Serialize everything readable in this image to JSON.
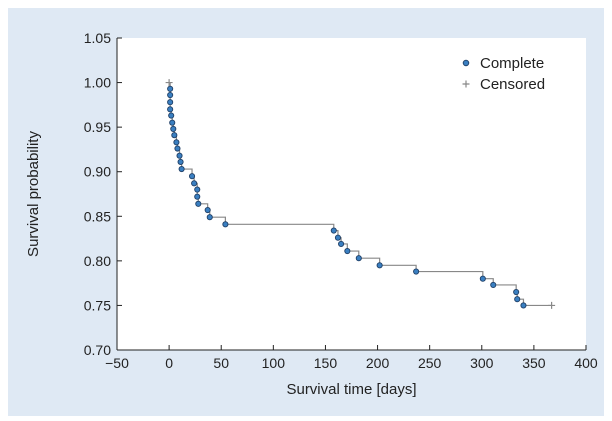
{
  "chart_data": {
    "type": "line",
    "title": "",
    "xlabel": "Survival time [days]",
    "ylabel": "Survival probability",
    "xlim": [
      -50,
      400
    ],
    "ylim": [
      0.7,
      1.05
    ],
    "xticks": [
      -50,
      0,
      50,
      100,
      150,
      200,
      250,
      300,
      350,
      400
    ],
    "yticks": [
      0.7,
      0.75,
      0.8,
      0.85,
      0.9,
      0.95,
      1.0,
      1.05
    ],
    "xtick_labels": [
      "−50",
      "0",
      "50",
      "100",
      "150",
      "200",
      "250",
      "300",
      "350",
      "400"
    ],
    "ytick_labels": [
      "0.70",
      "0.75",
      "0.80",
      "0.85",
      "0.90",
      "0.95",
      "1.00",
      "1.05"
    ],
    "grid": false,
    "legend_position": "top-right",
    "colors": {
      "step": "#888888",
      "marker_fill": "#3a7fc1",
      "marker_edge": "#1f3f66",
      "censored": "#888888",
      "background": "#dfe9f4",
      "plot_bg": "#ffffff"
    },
    "legend": [
      {
        "label": "Complete",
        "marker": "circle"
      },
      {
        "label": "Censored",
        "marker": "plus"
      }
    ],
    "series": [
      {
        "name": "Complete",
        "kind": "step-with-events",
        "points": [
          {
            "x": 1,
            "y": 0.993
          },
          {
            "x": 1,
            "y": 0.986
          },
          {
            "x": 1,
            "y": 0.978
          },
          {
            "x": 1,
            "y": 0.97
          },
          {
            "x": 2,
            "y": 0.963
          },
          {
            "x": 3,
            "y": 0.955
          },
          {
            "x": 4,
            "y": 0.948
          },
          {
            "x": 5,
            "y": 0.941
          },
          {
            "x": 7,
            "y": 0.933
          },
          {
            "x": 8,
            "y": 0.926
          },
          {
            "x": 10,
            "y": 0.918
          },
          {
            "x": 11,
            "y": 0.911
          },
          {
            "x": 12,
            "y": 0.903
          },
          {
            "x": 22,
            "y": 0.895
          },
          {
            "x": 24,
            "y": 0.887
          },
          {
            "x": 27,
            "y": 0.88
          },
          {
            "x": 27,
            "y": 0.872
          },
          {
            "x": 28,
            "y": 0.864
          },
          {
            "x": 37,
            "y": 0.857
          },
          {
            "x": 39,
            "y": 0.849
          },
          {
            "x": 54,
            "y": 0.841
          },
          {
            "x": 158,
            "y": 0.834
          },
          {
            "x": 162,
            "y": 0.826
          },
          {
            "x": 165,
            "y": 0.819
          },
          {
            "x": 171,
            "y": 0.811
          },
          {
            "x": 182,
            "y": 0.803
          },
          {
            "x": 202,
            "y": 0.795
          },
          {
            "x": 237,
            "y": 0.788
          },
          {
            "x": 301,
            "y": 0.78
          },
          {
            "x": 311,
            "y": 0.773
          },
          {
            "x": 333,
            "y": 0.765
          },
          {
            "x": 334,
            "y": 0.757
          },
          {
            "x": 340,
            "y": 0.75
          }
        ]
      },
      {
        "name": "Censored",
        "kind": "censor-marks",
        "points": [
          {
            "x": 0,
            "y": 1.0
          },
          {
            "x": 367,
            "y": 0.75
          }
        ]
      }
    ]
  }
}
